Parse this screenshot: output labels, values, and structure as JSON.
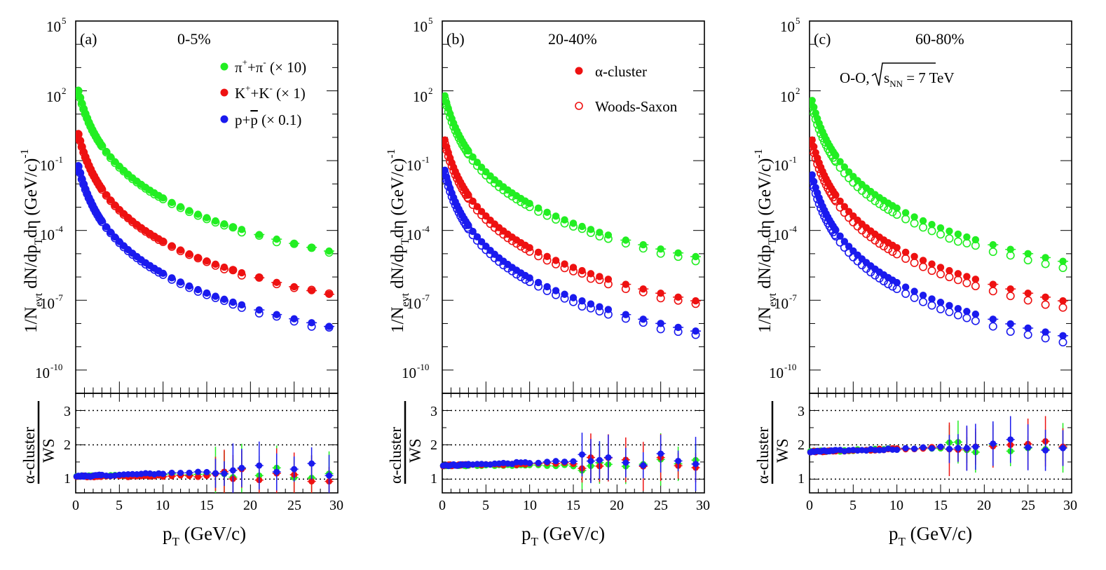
{
  "figure": {
    "ylabel_upper": "1/N_evt dN/dp_T dη (GeV/c)^-1",
    "ylabel_ratio": "α-cluster / WS",
    "xlabel": "p_T (GeV/c)",
    "y_exponents": [
      "5",
      "2",
      "-1",
      "-4",
      "-7",
      "-10"
    ],
    "legend_species": [
      {
        "label": "π⁺+π⁻ (× 10)",
        "color": "#22ee22"
      },
      {
        "label": "K⁺+K⁻ (× 1)",
        "color": "#ee1111"
      },
      {
        "label": "p+p̄ (× 0.1)",
        "color": "#1a1aee"
      }
    ],
    "legend_models": [
      {
        "label": "α-cluster",
        "marker": "filled"
      },
      {
        "label": "Woods-Saxon",
        "marker": "open"
      }
    ],
    "system_label": "O-O, √s_NN = 7 TeV"
  },
  "chart_data": [
    {
      "type": "scatter",
      "panel_label": "(a)",
      "centrality": "0-5%",
      "xlim": [
        0,
        30
      ],
      "ylim_log10": [
        -11,
        5
      ],
      "ratio_ylim": [
        0.6,
        3.5
      ],
      "ratio_lines": [
        1,
        2,
        3
      ],
      "x_ticks": [
        0,
        5,
        10,
        15,
        20,
        25,
        30
      ],
      "ratio_ticks": [
        1,
        2,
        3
      ],
      "series": [
        {
          "name": "π⁺+π⁻ (× 10)",
          "color": "#22ee22",
          "A": 2.54,
          "ratio_lo": 1.08,
          "ratio_hi": 1.2
        },
        {
          "name": "K⁺+K⁻ (× 1)",
          "color": "#ee1111",
          "A": 0.68,
          "ratio_lo": 1.08,
          "ratio_hi": 1.1
        },
        {
          "name": "p+p̄ (× 0.1)",
          "color": "#1a1aee",
          "A": -0.7,
          "ratio_lo": 1.08,
          "ratio_hi": 1.3
        }
      ]
    },
    {
      "type": "scatter",
      "panel_label": "(b)",
      "centrality": "20-40%",
      "xlim": [
        0,
        30
      ],
      "ylim_log10": [
        -11,
        5
      ],
      "ratio_ylim": [
        0.6,
        3.5
      ],
      "ratio_lines": [
        1,
        2,
        3
      ],
      "x_ticks": [
        0,
        5,
        10,
        15,
        20,
        25,
        30
      ],
      "ratio_ticks": [
        1,
        2,
        3
      ],
      "series": [
        {
          "name": "π⁺+π⁻ (× 10)",
          "color": "#22ee22",
          "A": 2.3,
          "ratio_lo": 1.4,
          "ratio_hi": 1.4
        },
        {
          "name": "K⁺+K⁻ (× 1)",
          "color": "#ee1111",
          "A": 0.4,
          "ratio_lo": 1.4,
          "ratio_hi": 1.5
        },
        {
          "name": "p+p̄ (× 0.1)",
          "color": "#1a1aee",
          "A": -0.9,
          "ratio_lo": 1.4,
          "ratio_hi": 1.6
        }
      ]
    },
    {
      "type": "scatter",
      "panel_label": "(c)",
      "centrality": "60-80%",
      "xlim": [
        0,
        30
      ],
      "ylim_log10": [
        -11,
        5
      ],
      "ratio_ylim": [
        0.6,
        3.5
      ],
      "ratio_lines": [
        1,
        2,
        3
      ],
      "x_ticks": [
        0,
        5,
        10,
        15,
        20,
        25,
        30
      ],
      "ratio_ticks": [
        1,
        2,
        3
      ],
      "series": [
        {
          "name": "π⁺+π⁻ (× 10)",
          "color": "#22ee22",
          "A": 2.1,
          "ratio_lo": 1.8,
          "ratio_hi": 2.0
        },
        {
          "name": "K⁺+K⁻ (× 1)",
          "color": "#ee1111",
          "A": 0.4,
          "ratio_lo": 1.8,
          "ratio_hi": 2.0
        },
        {
          "name": "p+p̄ (× 0.1)",
          "color": "#1a1aee",
          "A": -1.1,
          "ratio_lo": 1.8,
          "ratio_hi": 2.0
        }
      ]
    }
  ]
}
